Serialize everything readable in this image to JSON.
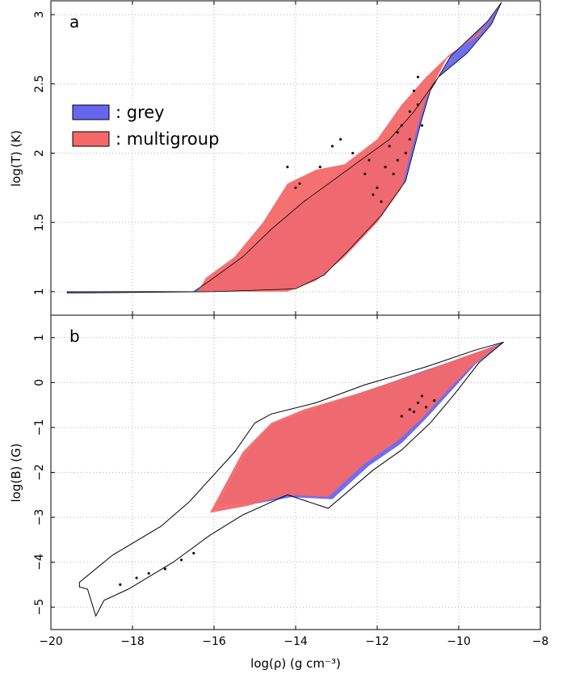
{
  "colors": {
    "grey": "#6666ee",
    "multigroup": "#f46868",
    "outline": "#000000",
    "dots": "#111111",
    "grid": "#b0b0b0"
  },
  "chart_data": [
    {
      "type": "scatter",
      "panel_label": "a",
      "xlabel": "log(ρ) (g cm⁻³)",
      "ylabel": "log(T) (K)",
      "xlim": [
        -20,
        -8
      ],
      "ylim": [
        0.83,
        3.1
      ],
      "xticks": [
        -20,
        -18,
        -16,
        -14,
        -12,
        -10,
        -8
      ],
      "yticks": [
        1,
        1.5,
        2,
        2.5,
        3
      ],
      "grid": true,
      "legend_position": "upper-left",
      "legend": [
        {
          "key": "grey",
          "label": ": grey"
        },
        {
          "key": "multigroup",
          "label": ": multigroup"
        }
      ],
      "series": [
        {
          "name": "grey",
          "envelope": [
            [
              -19.6,
              1.0
            ],
            [
              -16.5,
              1.0
            ],
            [
              -16.1,
              1.08
            ],
            [
              -15.3,
              1.25
            ],
            [
              -14.6,
              1.45
            ],
            [
              -13.8,
              1.65
            ],
            [
              -13.1,
              1.8
            ],
            [
              -12.4,
              1.95
            ],
            [
              -11.7,
              2.1
            ],
            [
              -11.1,
              2.3
            ],
            [
              -10.5,
              2.55
            ],
            [
              -9.8,
              2.72
            ],
            [
              -9.2,
              2.93
            ],
            [
              -8.95,
              3.09
            ],
            [
              -9.3,
              2.95
            ],
            [
              -10.2,
              2.7
            ],
            [
              -10.7,
              2.45
            ],
            [
              -10.9,
              2.25
            ],
            [
              -11.3,
              1.8
            ],
            [
              -11.9,
              1.55
            ],
            [
              -12.7,
              1.3
            ],
            [
              -13.3,
              1.12
            ],
            [
              -14.0,
              1.02
            ],
            [
              -16.0,
              1.0
            ],
            [
              -19.6,
              0.99
            ]
          ]
        },
        {
          "name": "multigroup",
          "envelope": [
            [
              -19.6,
              1.0
            ],
            [
              -16.4,
              1.0
            ],
            [
              -16.2,
              1.1
            ],
            [
              -15.5,
              1.25
            ],
            [
              -14.8,
              1.5
            ],
            [
              -14.2,
              1.78
            ],
            [
              -13.5,
              1.88
            ],
            [
              -12.8,
              1.92
            ],
            [
              -12.0,
              2.1
            ],
            [
              -11.4,
              2.35
            ],
            [
              -10.8,
              2.55
            ],
            [
              -10.2,
              2.72
            ],
            [
              -9.5,
              2.85
            ],
            [
              -9.0,
              3.05
            ],
            [
              -9.4,
              2.9
            ],
            [
              -10.3,
              2.68
            ],
            [
              -10.8,
              2.4
            ],
            [
              -11.0,
              2.2
            ],
            [
              -11.4,
              1.75
            ],
            [
              -12.0,
              1.5
            ],
            [
              -12.8,
              1.25
            ],
            [
              -13.5,
              1.08
            ],
            [
              -14.2,
              1.0
            ],
            [
              -16.0,
              1.0
            ],
            [
              -19.6,
              1.0
            ]
          ]
        }
      ],
      "dots": [
        [
          -14.2,
          1.9
        ],
        [
          -14.0,
          1.75
        ],
        [
          -13.9,
          1.78
        ],
        [
          -13.4,
          1.9
        ],
        [
          -13.1,
          2.05
        ],
        [
          -12.9,
          2.1
        ],
        [
          -12.6,
          2.0
        ],
        [
          -12.2,
          1.95
        ],
        [
          -12.0,
          1.75
        ],
        [
          -11.9,
          1.65
        ],
        [
          -11.7,
          2.05
        ],
        [
          -11.5,
          1.95
        ],
        [
          -11.4,
          2.2
        ],
        [
          -11.2,
          2.3
        ],
        [
          -11.1,
          2.45
        ],
        [
          -11.0,
          2.55
        ],
        [
          -10.9,
          2.2
        ],
        [
          -11.6,
          1.85
        ],
        [
          -11.3,
          2.0
        ],
        [
          -12.1,
          1.7
        ],
        [
          -12.3,
          1.85
        ],
        [
          -11.8,
          1.9
        ],
        [
          -11.2,
          2.1
        ],
        [
          -11.0,
          2.35
        ],
        [
          -11.5,
          2.15
        ]
      ]
    },
    {
      "type": "scatter",
      "panel_label": "b",
      "xlabel": "log(ρ) (g cm⁻³)",
      "ylabel": "log(B) (G)",
      "xlim": [
        -20,
        -8
      ],
      "ylim": [
        -5.5,
        1.5
      ],
      "xticks": [
        -20,
        -18,
        -16,
        -14,
        -12,
        -10,
        -8
      ],
      "yticks": [
        -5,
        -4,
        -3,
        -2,
        -1,
        0,
        1
      ],
      "grid": true,
      "series": [
        {
          "name": "grey",
          "envelope": [
            [
              -15.9,
              -2.7
            ],
            [
              -15.2,
              -1.55
            ],
            [
              -14.6,
              -0.95
            ],
            [
              -13.6,
              -0.6
            ],
            [
              -12.3,
              -0.2
            ],
            [
              -10.9,
              0.25
            ],
            [
              -9.7,
              0.62
            ],
            [
              -8.9,
              0.9
            ],
            [
              -9.6,
              0.4
            ],
            [
              -10.2,
              -0.2
            ],
            [
              -10.8,
              -0.8
            ],
            [
              -11.4,
              -1.35
            ],
            [
              -12.2,
              -1.85
            ],
            [
              -13.1,
              -2.6
            ],
            [
              -14.1,
              -2.55
            ],
            [
              -15.0,
              -2.7
            ]
          ]
        },
        {
          "name": "multigroup",
          "envelope": [
            [
              -16.1,
              -2.9
            ],
            [
              -15.3,
              -1.55
            ],
            [
              -14.6,
              -0.9
            ],
            [
              -13.8,
              -0.6
            ],
            [
              -12.5,
              -0.25
            ],
            [
              -11.0,
              0.2
            ],
            [
              -9.8,
              0.6
            ],
            [
              -9.0,
              0.85
            ],
            [
              -9.7,
              0.35
            ],
            [
              -10.3,
              -0.2
            ],
            [
              -10.9,
              -0.8
            ],
            [
              -11.5,
              -1.3
            ],
            [
              -12.3,
              -1.8
            ],
            [
              -13.2,
              -2.55
            ],
            [
              -14.2,
              -2.5
            ],
            [
              -15.2,
              -2.75
            ]
          ]
        },
        {
          "name": "outline",
          "envelope": [
            [
              -19.3,
              -4.45
            ],
            [
              -18.5,
              -3.85
            ],
            [
              -17.3,
              -3.2
            ],
            [
              -16.6,
              -2.65
            ],
            [
              -15.5,
              -1.55
            ],
            [
              -15.0,
              -0.9
            ],
            [
              -14.6,
              -0.7
            ],
            [
              -13.5,
              -0.45
            ],
            [
              -12.3,
              -0.05
            ],
            [
              -10.8,
              0.35
            ],
            [
              -9.6,
              0.72
            ],
            [
              -8.9,
              0.9
            ],
            [
              -9.5,
              0.45
            ],
            [
              -10.1,
              -0.25
            ],
            [
              -10.7,
              -0.9
            ],
            [
              -11.4,
              -1.5
            ],
            [
              -12.1,
              -1.95
            ],
            [
              -13.2,
              -2.8
            ],
            [
              -14.2,
              -2.5
            ],
            [
              -15.3,
              -2.95
            ],
            [
              -16.1,
              -3.4
            ],
            [
              -17.0,
              -4.0
            ],
            [
              -18.1,
              -4.6
            ],
            [
              -18.7,
              -4.85
            ],
            [
              -18.9,
              -5.2
            ],
            [
              -19.1,
              -4.6
            ],
            [
              -19.3,
              -4.55
            ]
          ]
        }
      ],
      "dots": [
        [
          -11.2,
          -0.6
        ],
        [
          -11.0,
          -0.45
        ],
        [
          -10.8,
          -0.55
        ],
        [
          -10.6,
          -0.4
        ],
        [
          -11.4,
          -0.75
        ],
        [
          -10.9,
          -0.3
        ],
        [
          -11.1,
          -0.65
        ],
        [
          -16.8,
          -3.95
        ],
        [
          -17.2,
          -4.15
        ],
        [
          -17.6,
          -4.25
        ],
        [
          -17.9,
          -4.35
        ],
        [
          -18.3,
          -4.5
        ],
        [
          -16.5,
          -3.8
        ]
      ]
    }
  ]
}
